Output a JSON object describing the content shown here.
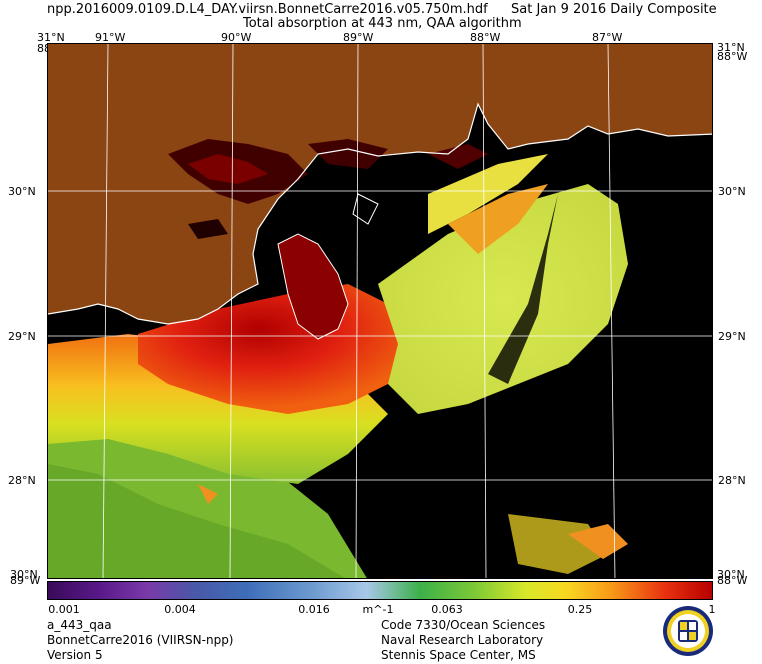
{
  "header": {
    "filename": "npp.2016009.0109.D.L4_DAY.viirsn.BonnetCarre2016.v05.750m.hdf",
    "date": "Sat Jan  9 2016 Daily Composite",
    "product_title": "Total absorption at 443 nm, QAA algorithm"
  },
  "map": {
    "lat_range": [
      27.35,
      31.0
    ],
    "lon_range": [
      -91.5,
      -86.6
    ],
    "longitude_ticks": [
      "91°W",
      "90°W",
      "89°W",
      "88°W",
      "87°W"
    ],
    "latitude_ticks": [
      "31°N",
      "30°N",
      "29°N",
      "28°N"
    ],
    "corner_labels": {
      "top_left_lat": "31°N",
      "top_left_lon": "88°W",
      "top_right_lat": "31°N",
      "top_right_lon": "88°W",
      "bottom_left_lat": "30°N",
      "bottom_left_lon": "89°W",
      "bottom_right_lat": "30°N",
      "bottom_right_lon": "88°W"
    },
    "land_color": "#8b4513",
    "water_no_data_color": "#000000",
    "grid_color": "#ffffff",
    "coast_color": "#ffffff"
  },
  "colorbar": {
    "ticks": [
      "0.001",
      "0.004",
      "0.016",
      "0.063",
      "0.25",
      "1"
    ],
    "tick_values": [
      0.001,
      0.004,
      0.016,
      0.063,
      0.25,
      1
    ],
    "units": "m^-1",
    "scale": "log"
  },
  "footer": {
    "left": [
      "a_443_qaa",
      "BonnetCarre2016 (VIIRSN-npp)",
      "Version 5"
    ],
    "right": [
      "Code 7330/Ocean Sciences",
      "Naval Research Laboratory",
      "Stennis Space Center, MS"
    ]
  },
  "logo": {
    "name": "naval-research-laboratory-seal"
  }
}
